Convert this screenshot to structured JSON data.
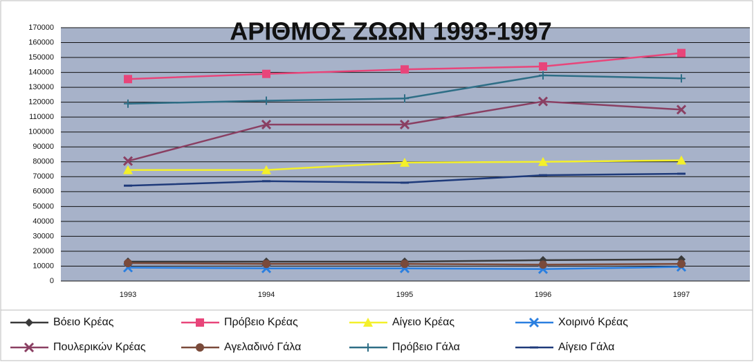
{
  "chart_data": {
    "type": "line",
    "title": "ΑΡΙΘΜΟΣ ΖΩΩΝ 1993-1997",
    "categories": [
      "1993",
      "1994",
      "1995",
      "1996",
      "1997"
    ],
    "ylim": [
      0,
      170000
    ],
    "yticks": [
      0,
      10000,
      20000,
      30000,
      40000,
      50000,
      60000,
      70000,
      80000,
      90000,
      100000,
      110000,
      120000,
      130000,
      140000,
      150000,
      160000,
      170000
    ],
    "grid": true,
    "legend": "bottom",
    "series": [
      {
        "name": "Βόειο Κρέας",
        "color": "#3a3a3a",
        "marker": "diamond",
        "values": [
          13000,
          13000,
          13000,
          14000,
          14500
        ]
      },
      {
        "name": "Πρόβειο Κρέας",
        "color": "#e8457a",
        "marker": "square",
        "values": [
          135500,
          139000,
          142000,
          144000,
          153000
        ]
      },
      {
        "name": "Αίγειο Κρέας",
        "color": "#f4f02a",
        "marker": "triangle",
        "values": [
          74500,
          74500,
          79500,
          80000,
          81000
        ]
      },
      {
        "name": "Χοιρινό Κρέας",
        "color": "#2a7fe0",
        "marker": "x",
        "values": [
          9000,
          8500,
          8500,
          8000,
          9500
        ]
      },
      {
        "name": "Πουλερικών Κρέας",
        "color": "#8a3f62",
        "marker": "x",
        "values": [
          80500,
          105000,
          105000,
          120500,
          115000
        ]
      },
      {
        "name": "Αγελαδινό Γάλα",
        "color": "#7a4a3a",
        "marker": "circle",
        "values": [
          12000,
          11500,
          11500,
          11000,
          11500
        ]
      },
      {
        "name": "Πρόβειο Γάλα",
        "color": "#2e6e86",
        "marker": "plus",
        "values": [
          119000,
          121000,
          122500,
          138000,
          136000
        ]
      },
      {
        "name": "Αίγειο Γάλα",
        "color": "#1e3a7a",
        "marker": "dash",
        "values": [
          64000,
          67000,
          66000,
          71000,
          72000
        ]
      }
    ]
  }
}
